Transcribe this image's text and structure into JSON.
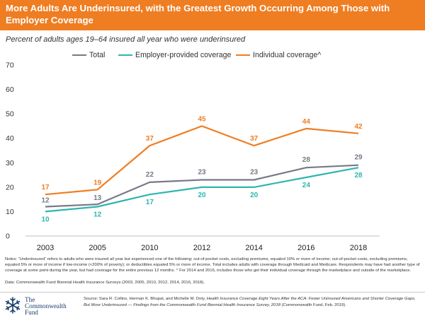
{
  "header": {
    "title": "More Adults Are Underinsured, with the Greatest Growth Occurring Among Those with Employer Coverage",
    "subtitle": "Percent of adults ages 19–64 insured all year who were underinsured"
  },
  "colors": {
    "header_bg": "#ef7d22",
    "total": "#767a87",
    "employer": "#2fb5b0",
    "individual": "#ef7d22"
  },
  "chart_data": {
    "type": "line",
    "x": [
      "2003",
      "2005",
      "2010",
      "2012",
      "2014",
      "2016",
      "2018"
    ],
    "series": [
      {
        "name": "Total",
        "values": [
          12,
          13,
          22,
          23,
          23,
          28,
          29
        ],
        "labels": [
          "12",
          "13",
          "22",
          "23",
          "23",
          "28",
          "29"
        ]
      },
      {
        "name": "Employer-provided coverage",
        "values": [
          10,
          12,
          17,
          20,
          20,
          24,
          28
        ],
        "labels": [
          "10",
          "12",
          "17",
          "20",
          "20",
          "24",
          "28"
        ]
      },
      {
        "name": "Individual coverage^",
        "values": [
          17,
          19,
          37,
          45,
          37,
          44,
          42
        ],
        "labels": [
          "17",
          "19",
          "37",
          "45",
          "37",
          "44",
          "42"
        ]
      }
    ],
    "y_ticks": [
      "0",
      "10",
      "20",
      "30",
      "40",
      "50",
      "60",
      "70"
    ],
    "ylim": [
      0,
      70
    ],
    "grid": false,
    "legend_position": "top"
  },
  "footer": {
    "notes": "Notes: “Underinsured” refers to adults who were insured all year but experienced one of the following: out-of-pocket costs, excluding premiums, equaled 10% or more of income; out-of-pocket costs, excluding premiums, equaled 5% or more of income if low-income (<200% of poverty); or deductibles equaled 5% or more of income. Total includes adults with coverage through Medicaid and Medicare. Respondents may have had another type of coverage at some point during the year, but had coverage for the entire previous 12 months. ^ For 2014 and 2016, includes those who get their individual coverage through the marketplace and outside of the marketplace.",
    "data_source": "Data: Commonwealth Fund Biennial Health Insurance Surveys (2003, 2005, 2010, 2012, 2014, 2016, 2018).",
    "source_prefix": "Source: Sara R. Collins, Herman K. Bhupal, and Michelle M. Doty, ",
    "source_title": "Health Insurance Coverage Eight Years After the ACA: Fewer Uninsured Americans and Shorter Coverage Gaps, But More Underinsured — Findings from the Commonwealth Fund Biennial Health Insurance Survey, 2018",
    "source_suffix": " (Commonwealth Fund, Feb. 2019).",
    "logo_line1": "The",
    "logo_line2": "Commonwealth",
    "logo_line3": "Fund",
    "logo_icon": "snowflake-icon"
  }
}
